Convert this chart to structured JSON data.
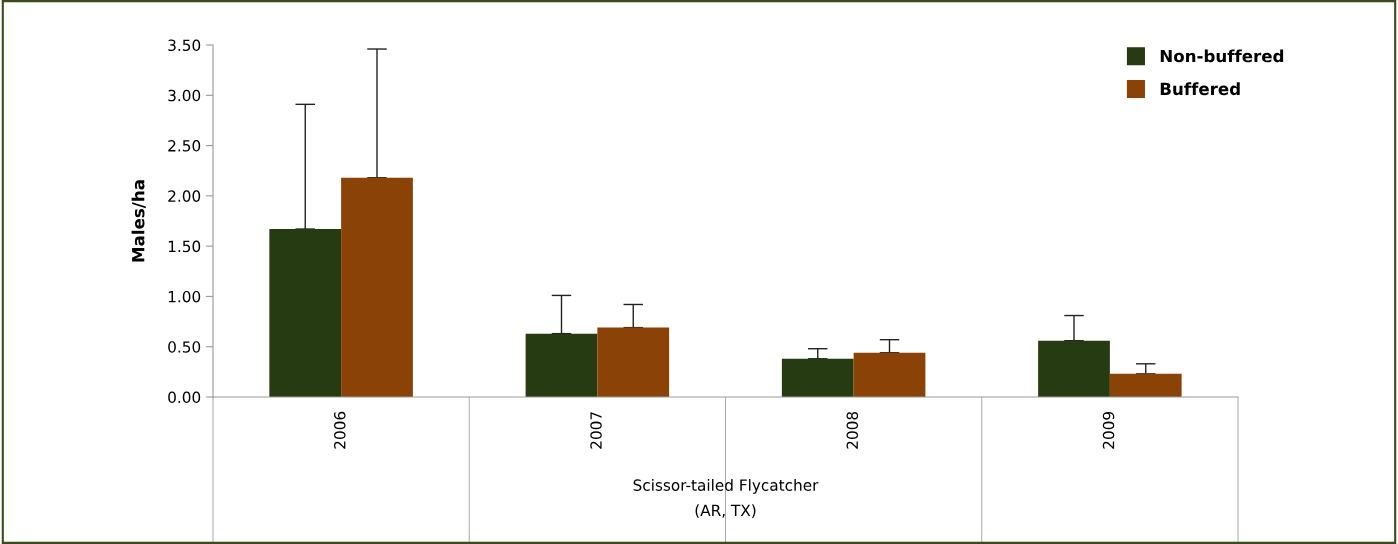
{
  "chart_data": {
    "type": "bar",
    "xlabel": "Scissor-tailed Flycatcher\n(AR, TX)",
    "ylabel": "Males/ha",
    "categories": [
      "2006",
      "2007",
      "2008",
      "2009"
    ],
    "series": [
      {
        "name": "Non-buffered",
        "color": "#263b12",
        "values": [
          1.67,
          0.63,
          0.38,
          0.56
        ],
        "errors": [
          [
            1.67,
            2.91
          ],
          [
            0.63,
            1.01
          ],
          [
            0.38,
            0.48
          ],
          [
            0.56,
            0.81
          ]
        ]
      },
      {
        "name": "Buffered",
        "color": "#8b4206",
        "values": [
          2.18,
          0.69,
          0.44,
          0.23
        ],
        "errors": [
          [
            2.18,
            3.46
          ],
          [
            0.69,
            0.92
          ],
          [
            0.44,
            0.57
          ],
          [
            0.23,
            0.33
          ]
        ]
      }
    ],
    "ylim": [
      0,
      3.5
    ],
    "yticks": [
      {
        "value": 0,
        "label": "0.00"
      },
      {
        "value": 0.5,
        "label": "0.50"
      },
      {
        "value": 1,
        "label": "1.00"
      },
      {
        "value": 1.5,
        "label": "1.50"
      },
      {
        "value": 2,
        "label": "2.00"
      },
      {
        "value": 2.5,
        "label": "2.50"
      },
      {
        "value": 3,
        "label": "3.00"
      },
      {
        "value": 3.5,
        "label": "3.50"
      }
    ],
    "grid": false,
    "legend": "top right"
  }
}
